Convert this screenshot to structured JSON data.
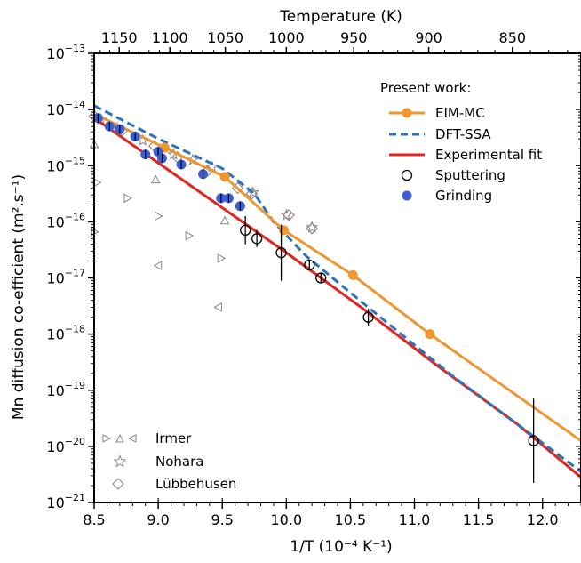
{
  "chart_data": {
    "type": "line",
    "xlabel": "1/T (10⁻⁴ K⁻¹)",
    "ylabel": "Mn diffusion co-efficient (m².s⁻¹)",
    "top_xlabel": "Temperature (K)",
    "xlim": [
      8.5,
      12.3
    ],
    "ylim_log10": [
      -21,
      -13
    ],
    "y_scale": "log",
    "x_ticks": [
      "8.5",
      "9.0",
      "9.5",
      "10.0",
      "10.5",
      "11.0",
      "11.5",
      "12.0"
    ],
    "x_tick_values": [
      8.5,
      9.0,
      9.5,
      10.0,
      10.5,
      11.0,
      11.5,
      12.0
    ],
    "y_tick_exponents": [
      -21,
      -20,
      -19,
      -18,
      -17,
      -16,
      -15,
      -14,
      -13
    ],
    "top_ticks": [
      "1150",
      "1100",
      "1050",
      "1000",
      "950",
      "900",
      "850"
    ],
    "top_tick_temps": [
      1150,
      1100,
      1050,
      1000,
      950,
      900,
      850
    ],
    "legend_title": "Present work:",
    "legend_position": "top-right",
    "lower_legend_position": "bottom-left",
    "colors": {
      "eim_mc": "#f0962e",
      "dft_ssa": "#2b74ba",
      "exp_fit": "#e2251f",
      "grinding": "#3a5fd4",
      "gray": "#888888"
    },
    "series": [
      {
        "name": "EIM-MC",
        "style": "line-markers",
        "points": [
          [
            8.52,
            -14.1
          ],
          [
            9.05,
            -14.68
          ],
          [
            9.52,
            -15.2
          ],
          [
            9.98,
            -16.15
          ],
          [
            10.52,
            -16.95
          ],
          [
            11.12,
            -18.0
          ],
          [
            12.3,
            -19.9
          ]
        ],
        "markers": [
          [
            9.05,
            -14.68
          ],
          [
            9.52,
            -15.2
          ],
          [
            9.98,
            -16.15
          ],
          [
            10.52,
            -16.95
          ],
          [
            11.12,
            -18.0
          ]
        ]
      },
      {
        "name": "DFT-SSA",
        "style": "dashed",
        "points": [
          [
            8.5,
            -13.93
          ],
          [
            9.0,
            -14.52
          ],
          [
            9.5,
            -15.05
          ],
          [
            9.75,
            -15.5
          ],
          [
            9.9,
            -16.0
          ],
          [
            10.15,
            -16.6
          ],
          [
            10.6,
            -17.45
          ],
          [
            11.3,
            -18.75
          ],
          [
            12.3,
            -20.45
          ]
        ]
      },
      {
        "name": "Experimental fit",
        "style": "line",
        "points": [
          [
            8.5,
            -14.15
          ],
          [
            9.0,
            -14.95
          ],
          [
            9.5,
            -15.75
          ],
          [
            10.0,
            -16.55
          ],
          [
            10.6,
            -17.55
          ],
          [
            11.2,
            -18.6
          ],
          [
            11.8,
            -19.6
          ],
          [
            12.3,
            -20.55
          ]
        ]
      },
      {
        "name": "Sputtering",
        "style": "open-circle-errorbar",
        "points": [
          [
            9.68,
            -16.15
          ],
          [
            9.77,
            -16.3
          ],
          [
            9.96,
            -16.55
          ],
          [
            10.18,
            -16.77
          ],
          [
            10.27,
            -17.0
          ],
          [
            10.64,
            -17.7
          ],
          [
            11.93,
            -19.9
          ]
        ],
        "err_log10": [
          0.25,
          0.15,
          0.5,
          0.08,
          0.08,
          0.15,
          0.75
        ]
      },
      {
        "name": "Grinding",
        "style": "filled-circle",
        "points": [
          [
            8.53,
            -14.15
          ],
          [
            8.62,
            -14.3
          ],
          [
            8.7,
            -14.35
          ],
          [
            8.82,
            -14.48
          ],
          [
            8.9,
            -14.8
          ],
          [
            9.0,
            -14.75
          ],
          [
            9.03,
            -14.87
          ],
          [
            9.18,
            -14.98
          ],
          [
            9.35,
            -15.15
          ],
          [
            9.49,
            -15.58
          ],
          [
            9.55,
            -15.58
          ],
          [
            9.64,
            -15.72
          ]
        ]
      },
      {
        "name": "Irmer",
        "style": "triangles",
        "points": [
          {
            "x": 8.5,
            "y": -14.62,
            "dir": "up"
          },
          {
            "x": 8.52,
            "y": -15.3,
            "dir": "right"
          },
          {
            "x": 8.5,
            "y": -16.18,
            "dir": "right"
          },
          {
            "x": 8.76,
            "y": -15.58,
            "dir": "right"
          },
          {
            "x": 8.98,
            "y": -15.25,
            "dir": "up"
          },
          {
            "x": 9.0,
            "y": -15.9,
            "dir": "right"
          },
          {
            "x": 9.0,
            "y": -16.78,
            "dir": "left"
          },
          {
            "x": 9.24,
            "y": -16.25,
            "dir": "right"
          },
          {
            "x": 9.49,
            "y": -16.65,
            "dir": "right"
          },
          {
            "x": 9.52,
            "y": -15.98,
            "dir": "up"
          },
          {
            "x": 9.47,
            "y": -17.52,
            "dir": "left"
          }
        ]
      },
      {
        "name": "Nohara",
        "style": "open-star",
        "points": [
          [
            8.55,
            -14.18
          ],
          [
            8.68,
            -14.33
          ],
          [
            8.88,
            -14.55
          ],
          [
            9.12,
            -14.8
          ],
          [
            9.27,
            -14.9
          ],
          [
            9.42,
            -15.02
          ],
          [
            9.74,
            -15.48
          ],
          [
            10.0,
            -15.88
          ],
          [
            10.2,
            -16.1
          ]
        ]
      },
      {
        "name": "Lübbehusen",
        "style": "open-diamond",
        "points": [
          [
            8.5,
            -14.12
          ],
          [
            8.72,
            -14.37
          ],
          [
            8.97,
            -14.65
          ],
          [
            9.15,
            -14.85
          ],
          [
            9.38,
            -15.1
          ],
          [
            9.62,
            -15.4
          ],
          [
            9.73,
            -15.5
          ],
          [
            10.02,
            -15.88
          ],
          [
            10.2,
            -16.12
          ]
        ]
      }
    ]
  }
}
